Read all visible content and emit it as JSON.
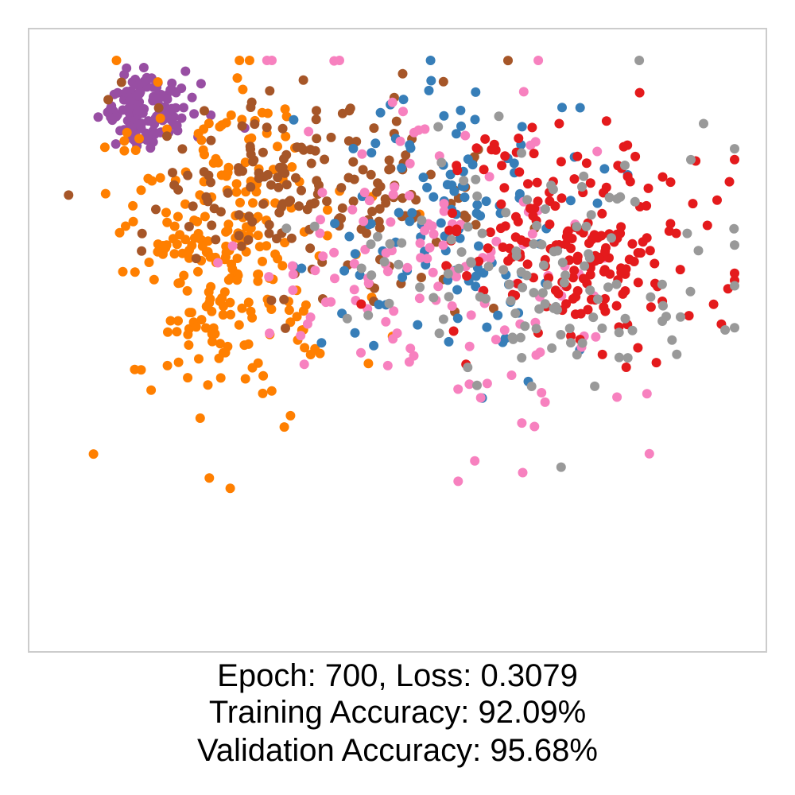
{
  "chart_data": {
    "type": "scatter",
    "title": "",
    "xlabel": "",
    "ylabel": "",
    "xlim": [
      -1.0,
      1.0
    ],
    "ylim": [
      -1.0,
      1.0
    ],
    "grid": false,
    "ticks": false,
    "legend": false,
    "frame_color": "#cccccc",
    "point_radius_hint": "small",
    "clusters": [
      {
        "color": "#984ea3",
        "label": "class-purple",
        "cx": -0.74,
        "cy": 0.83,
        "sx": 0.07,
        "sy": 0.07,
        "n": 140
      },
      {
        "color": "#ff7f00",
        "label": "class-orange",
        "cx": -0.52,
        "cy": 0.3,
        "sx": 0.16,
        "sy": 0.3,
        "n": 260
      },
      {
        "color": "#a65628",
        "label": "class-brown",
        "cx": -0.25,
        "cy": 0.52,
        "sx": 0.25,
        "sy": 0.18,
        "n": 190
      },
      {
        "color": "#377eb8",
        "label": "class-blue",
        "cx": 0.18,
        "cy": 0.42,
        "sx": 0.2,
        "sy": 0.25,
        "n": 120
      },
      {
        "color": "#f781bf",
        "label": "class-pink",
        "cx": 0.1,
        "cy": 0.28,
        "sx": 0.3,
        "sy": 0.3,
        "n": 140
      },
      {
        "color": "#e41a1c",
        "label": "class-red",
        "cx": 0.55,
        "cy": 0.35,
        "sx": 0.2,
        "sy": 0.2,
        "n": 200
      },
      {
        "color": "#999999",
        "label": "class-gray",
        "cx": 0.45,
        "cy": 0.25,
        "sx": 0.32,
        "sy": 0.25,
        "n": 130
      }
    ]
  },
  "caption": {
    "line1": "Epoch: 700, Loss: 0.3079",
    "line2": "Training Accuracy: 92.09%",
    "line3": "Validation Accuracy: 95.68%"
  }
}
